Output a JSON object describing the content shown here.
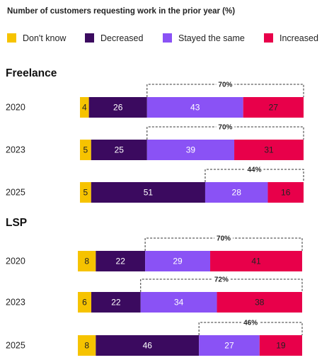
{
  "chart_data": {
    "type": "bar",
    "orientation": "horizontal",
    "stacked": true,
    "title": "Number of customers requesting work in the prior year (%)",
    "series_names": [
      "Don't know",
      "Decreased",
      "Stayed the same",
      "Increased"
    ],
    "colors": [
      "#F6C300",
      "#3B0A5F",
      "#8A52F5",
      "#E8004A"
    ],
    "value_text_colors": [
      "#222222",
      "#FFFFFF",
      "#FFFFFF",
      "#222222"
    ],
    "groups": [
      {
        "name": "Freelance",
        "rows": [
          {
            "label": "2020",
            "values": [
              4,
              26,
              43,
              27
            ],
            "bracket_label": "70%"
          },
          {
            "label": "2023",
            "values": [
              5,
              25,
              39,
              31
            ],
            "bracket_label": "70%"
          },
          {
            "label": "2025",
            "values": [
              5,
              51,
              28,
              16
            ],
            "bracket_label": "44%"
          }
        ]
      },
      {
        "name": "LSP",
        "rows": [
          {
            "label": "2020",
            "values": [
              8,
              22,
              29,
              41
            ],
            "bracket_label": "70%"
          },
          {
            "label": "2023",
            "values": [
              6,
              22,
              34,
              38
            ],
            "bracket_label": "72%"
          },
          {
            "label": "2025",
            "values": [
              8,
              46,
              27,
              19
            ],
            "bracket_label": "46%"
          }
        ]
      }
    ]
  }
}
